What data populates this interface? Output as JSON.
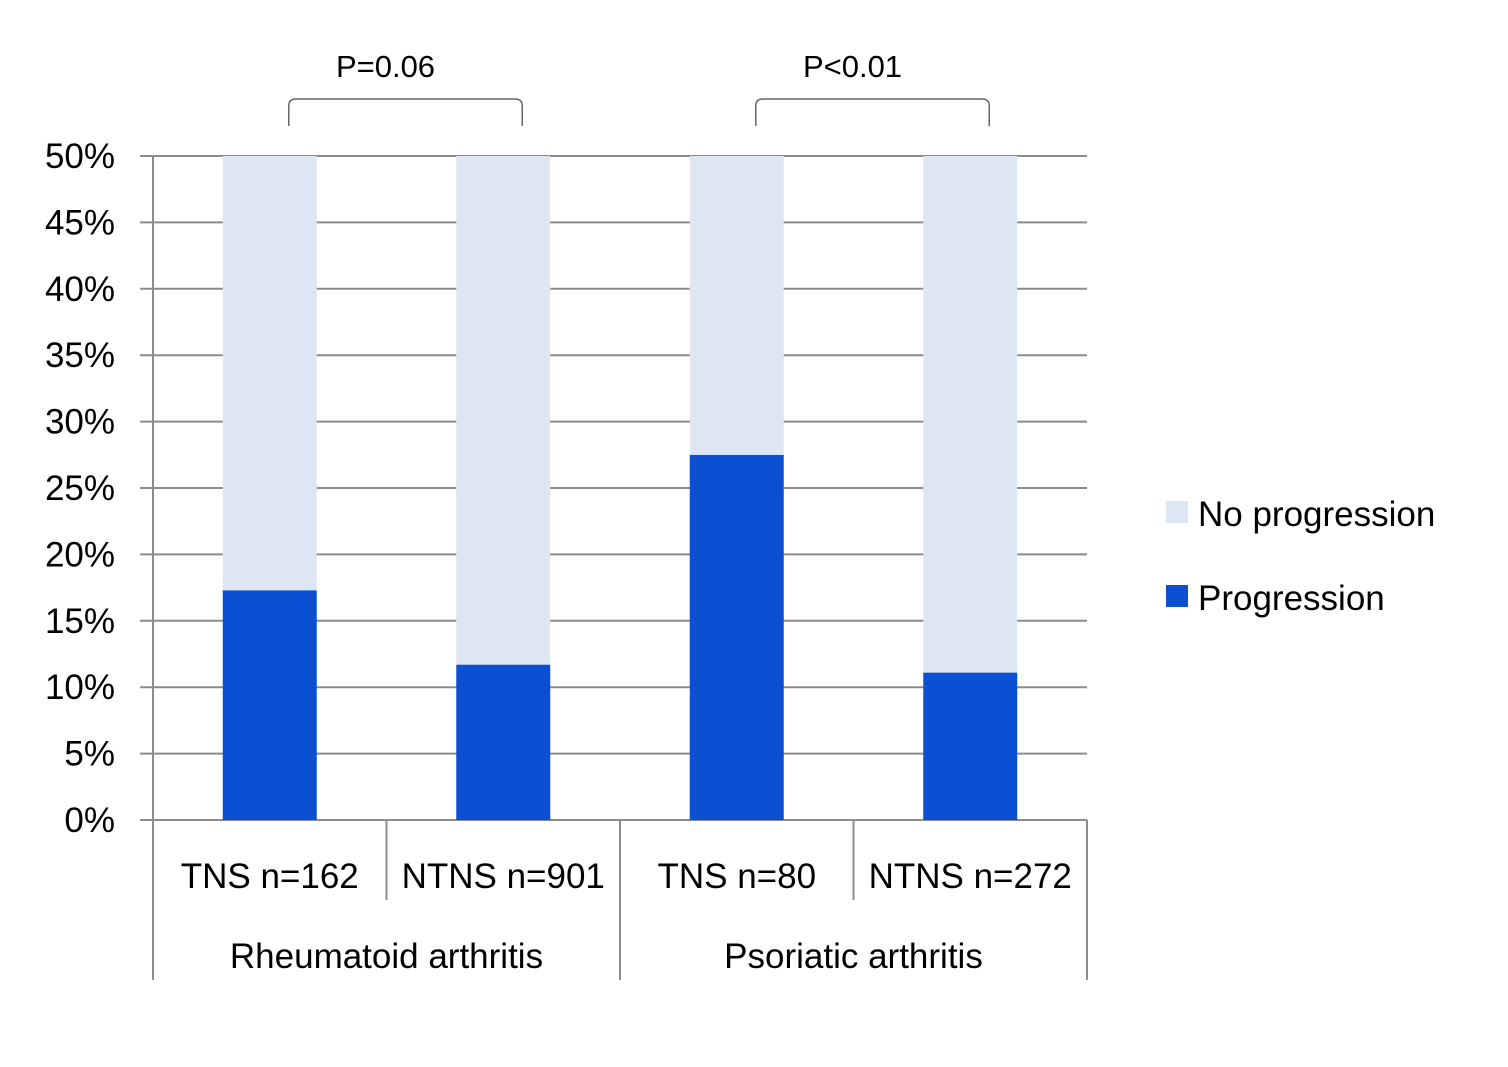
{
  "chart_data": {
    "type": "bar",
    "stacked": true,
    "categories": [
      "TNS n=162",
      "NTNS n=901",
      "TNS n=80",
      "NTNS n=272"
    ],
    "groups": [
      {
        "label": "Rheumatoid arthritis",
        "categories": [
          0,
          1
        ]
      },
      {
        "label": "Psoriatic arthritis",
        "categories": [
          2,
          3
        ]
      }
    ],
    "series": [
      {
        "name": "Progression",
        "color": "#0b50d3",
        "values": [
          17.3,
          11.7,
          27.5,
          11.1
        ]
      },
      {
        "name": "No progression",
        "color": "#dfe6f3",
        "values": [
          32.7,
          38.3,
          22.5,
          38.9
        ]
      }
    ],
    "yticks": [
      "0%",
      "5%",
      "10%",
      "15%",
      "20%",
      "25%",
      "30%",
      "35%",
      "40%",
      "45%",
      "50%"
    ],
    "ylim": [
      0,
      50
    ],
    "grid": true,
    "legend": {
      "placement": "right",
      "entries": [
        "No progression",
        "Progression"
      ]
    },
    "annotations": [
      {
        "text": "P=0.06",
        "from": 0,
        "to": 1
      },
      {
        "text": "P<0.01",
        "from": 2,
        "to": 3
      }
    ]
  }
}
